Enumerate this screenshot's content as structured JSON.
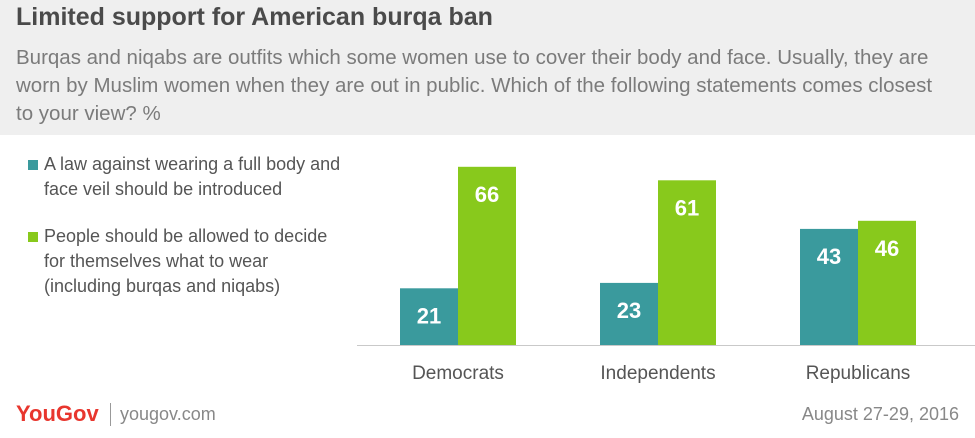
{
  "header": {
    "title": "Limited support for American burqa ban",
    "subtitle": "Burqas and niqabs are outfits which some women use to cover their body and face. Usually, they are worn by Muslim women when they are out in public. Which of the following statements comes closest to your view? %"
  },
  "colors": {
    "teal": "#3a9a9d",
    "green": "#88c91c",
    "header_bg": "#efefef"
  },
  "chart_data": {
    "type": "bar",
    "categories": [
      "Democrats",
      "Independents",
      "Republicans"
    ],
    "series": [
      {
        "name": "A law against wearing a full body and face veil should be introduced",
        "values": [
          21,
          23,
          43
        ],
        "color": "#3a9a9d"
      },
      {
        "name": "People should be allowed to decide for themselves what to wear (including burqas and niqabs)",
        "values": [
          66,
          61,
          46
        ],
        "color": "#88c91c"
      }
    ],
    "title": "Limited support for American burqa ban",
    "legend_position": "left",
    "grid": false
  },
  "footer": {
    "logo": "YouGov",
    "site": "yougov.com",
    "date": "August 27-29, 2016"
  }
}
